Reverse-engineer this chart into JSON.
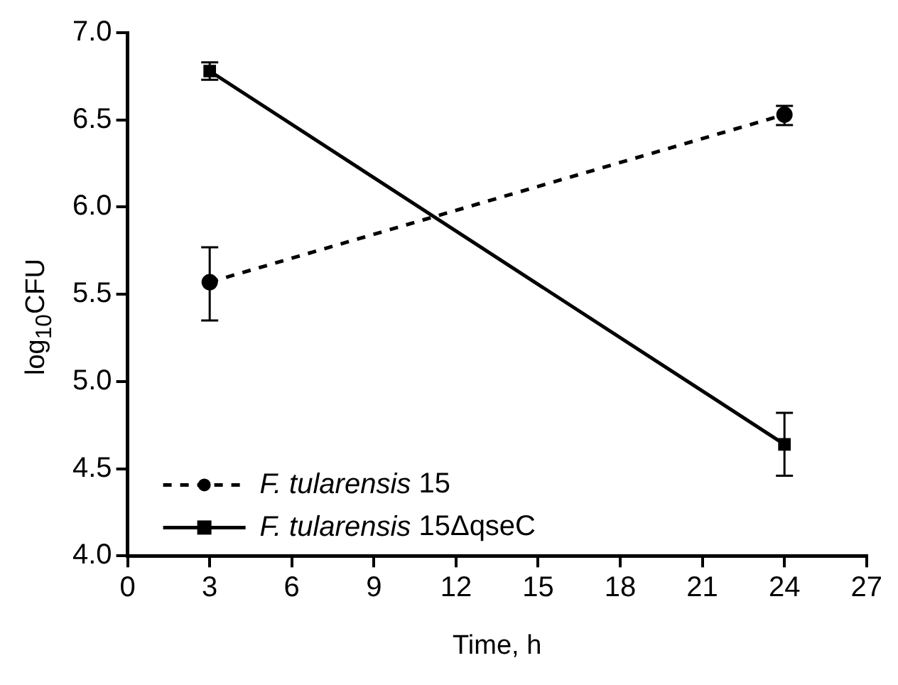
{
  "chart_data": {
    "type": "line",
    "xlabel": "Time, h",
    "ylabel": "log$_{10}$CFU",
    "x": [
      3,
      24
    ],
    "series": [
      {
        "name": "F. tularensis 15",
        "color": "#000000",
        "values": [
          5.57,
          6.53
        ],
        "errors": [
          [
            5.35,
            5.77
          ],
          [
            6.47,
            6.58
          ]
        ],
        "marker": "circle",
        "line_style": "dashed"
      },
      {
        "name": "F. tularensis 15ΔqseC",
        "color": "#000000",
        "values": [
          6.78,
          4.64
        ],
        "errors": [
          [
            6.73,
            6.83
          ],
          [
            4.46,
            4.82
          ]
        ],
        "marker": "square",
        "line_style": "solid"
      }
    ],
    "xlim": [
      0,
      27
    ],
    "xticks": [
      0,
      3,
      6,
      9,
      12,
      15,
      18,
      21,
      24,
      27
    ],
    "ylim": [
      4,
      7
    ],
    "yticks": [
      {
        "value": 4,
        "label": "4.0"
      },
      {
        "value": 4.5,
        "label": "4.5"
      },
      {
        "value": 5,
        "label": "5.0"
      },
      {
        "value": 5.5,
        "label": "5.5"
      },
      {
        "value": 6,
        "label": "6.0"
      },
      {
        "value": 6.5,
        "label": "6.5"
      },
      {
        "value": 7,
        "label": "7.0"
      }
    ],
    "grid": false,
    "legend": "bottom left"
  }
}
